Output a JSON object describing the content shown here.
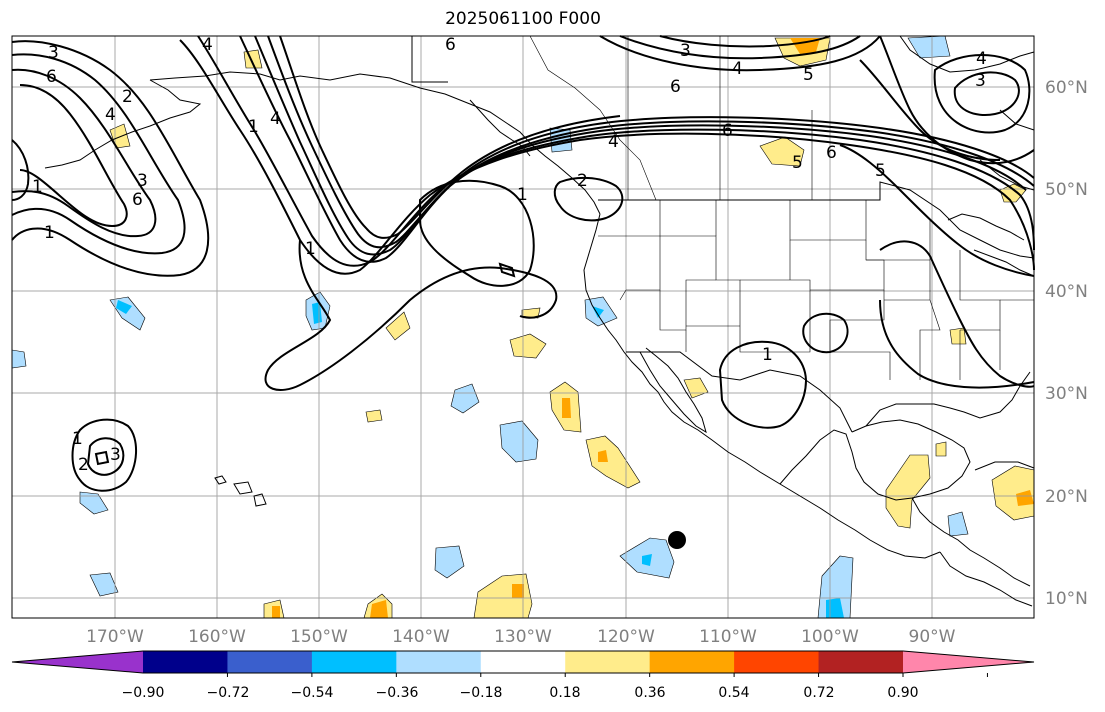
{
  "title": "2025061100 F000",
  "map": {
    "projection": "PlateCarree",
    "lon_range": [
      -180,
      -80
    ],
    "lat_range": [
      8,
      65
    ],
    "lon_ticks": [
      {
        "lon": -170,
        "label": "170°W"
      },
      {
        "lon": -160,
        "label": "160°W"
      },
      {
        "lon": -150,
        "label": "150°W"
      },
      {
        "lon": -140,
        "label": "140°W"
      },
      {
        "lon": -130,
        "label": "130°W"
      },
      {
        "lon": -120,
        "label": "120°W"
      },
      {
        "lon": -110,
        "label": "110°W"
      },
      {
        "lon": -100,
        "label": "100°W"
      },
      {
        "lon": -90,
        "label": "90°W"
      }
    ],
    "lat_ticks": [
      {
        "lat": 60,
        "label": "60°N"
      },
      {
        "lat": 50,
        "label": "50°N"
      },
      {
        "lat": 40,
        "label": "40°N"
      },
      {
        "lat": 30,
        "label": "30°N"
      },
      {
        "lat": 20,
        "label": "20°N"
      },
      {
        "lat": 10,
        "label": "10°N"
      }
    ],
    "gridlines": true,
    "marker": {
      "lon": -115.5,
      "lat": 15.5,
      "color": "#000000"
    }
  },
  "contour_labels": [
    "3",
    "6",
    "2",
    "4",
    "1",
    "6",
    "3",
    "4",
    "6",
    "5",
    "6",
    "4",
    "1",
    "2",
    "1",
    "3",
    "4",
    "2",
    "1",
    "4",
    "6",
    "5",
    "1",
    "3",
    "6",
    "5",
    "3",
    "1",
    "1",
    "4"
  ],
  "colorbar": {
    "ticks": [
      "−0.90",
      "−0.72",
      "−0.54",
      "−0.36",
      "−0.18",
      "0.18",
      "0.36",
      "0.54",
      "0.72",
      "0.90"
    ],
    "colors": [
      "#9932cc",
      "#00008b",
      "#3a5fcd",
      "#00bfff",
      "#afdeff",
      "#ffffff",
      "#ffec8b",
      "#ffa500",
      "#ff4500",
      "#b22222",
      "#ff86ab"
    ],
    "extend": "both"
  },
  "legend_colors": {
    "neg_light": "#afdeff",
    "neg_mid": "#00bfff",
    "pos_light": "#ffec8b",
    "pos_mid": "#ffa500"
  }
}
